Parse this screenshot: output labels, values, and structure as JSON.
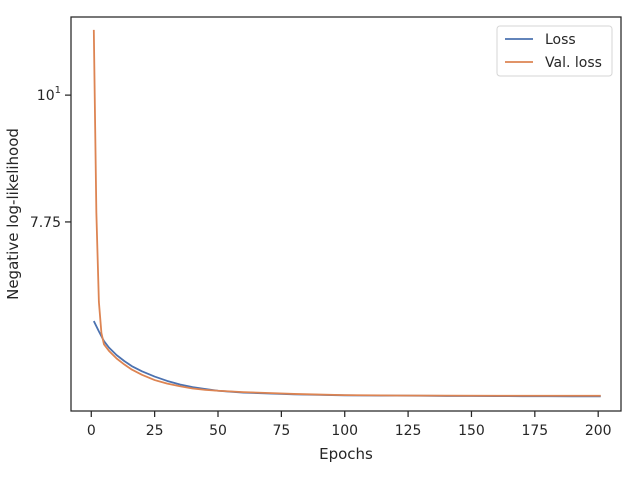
{
  "chart_data": {
    "type": "line",
    "xlabel": "Epochs",
    "ylabel": "Negative log-likelihood",
    "xlim": [
      -8,
      209
    ],
    "ylim": [
      5.3,
      11.7
    ],
    "y_scale": "log",
    "xticks": [
      0,
      25,
      50,
      75,
      100,
      125,
      150,
      175,
      200
    ],
    "xtick_labels": [
      "0",
      "25",
      "50",
      "75",
      "100",
      "125",
      "150",
      "175",
      "200"
    ],
    "yticks": [
      {
        "value": 10,
        "base": "10",
        "exp": "1"
      },
      {
        "value": 7.75,
        "label": "7.75"
      }
    ],
    "legend": "top-right",
    "grid": false,
    "series": [
      {
        "name": "Loss",
        "color": "#4c72b0",
        "x": [
          1,
          3,
          5,
          7,
          10,
          13,
          16,
          20,
          25,
          30,
          35,
          40,
          45,
          50,
          55,
          60,
          70,
          80,
          90,
          100,
          110,
          120,
          130,
          140,
          150,
          160,
          170,
          180,
          190,
          200,
          201
        ],
        "y": [
          6.35,
          6.22,
          6.1,
          6.02,
          5.93,
          5.86,
          5.8,
          5.74,
          5.68,
          5.63,
          5.59,
          5.56,
          5.54,
          5.52,
          5.51,
          5.5,
          5.49,
          5.48,
          5.475,
          5.47,
          5.468,
          5.466,
          5.465,
          5.463,
          5.462,
          5.461,
          5.46,
          5.46,
          5.459,
          5.459,
          5.459
        ]
      },
      {
        "name": "Val. loss",
        "color": "#dd8452",
        "x": [
          1,
          2,
          3,
          4,
          5,
          7,
          10,
          13,
          16,
          20,
          25,
          30,
          35,
          40,
          45,
          50,
          60,
          70,
          80,
          90,
          100,
          120,
          140,
          160,
          180,
          201
        ],
        "y": [
          11.4,
          7.9,
          6.6,
          6.2,
          6.06,
          5.98,
          5.89,
          5.82,
          5.76,
          5.7,
          5.64,
          5.6,
          5.57,
          5.545,
          5.53,
          5.52,
          5.505,
          5.495,
          5.485,
          5.478,
          5.472,
          5.468,
          5.466,
          5.465,
          5.465,
          5.465
        ]
      }
    ]
  }
}
